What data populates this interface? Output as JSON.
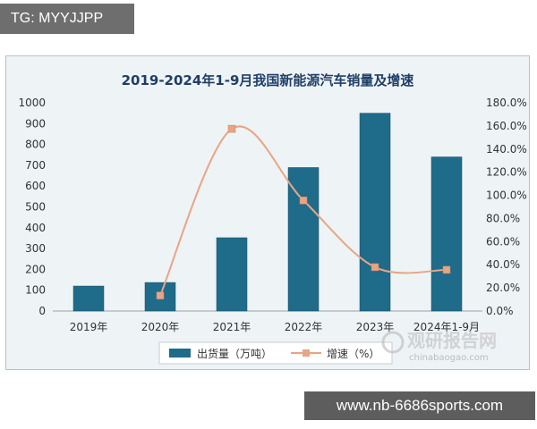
{
  "overlays": {
    "tag": "TG: MYYJJPP",
    "url": "www.nb-6686sports.com"
  },
  "watermark": {
    "main": "观研报告网",
    "sub": "chinabaogao.com"
  },
  "chart_data": {
    "type": "bar",
    "title": "2019-2024年1-9月我国新能源汽车销量及增速",
    "categories": [
      "2019年",
      "2020年",
      "2021年",
      "2022年",
      "2023年",
      "2024年1-9月"
    ],
    "series": [
      {
        "name": "出货量（万吨）",
        "type": "bar",
        "axis": "left",
        "color": "#1f6b8a",
        "values": [
          120,
          137,
          352,
          689,
          950,
          740
        ]
      },
      {
        "name": "增速（%）",
        "type": "line",
        "axis": "right",
        "color": "#e8a585",
        "values": [
          null,
          13.4,
          157.5,
          95.6,
          37.9,
          35.6
        ]
      }
    ],
    "y_left": {
      "ticks": [
        "0",
        "100",
        "200",
        "300",
        "400",
        "500",
        "600",
        "700",
        "800",
        "900",
        "1000"
      ],
      "ylim": [
        0,
        1000
      ]
    },
    "y_right": {
      "ticks": [
        "0.0%",
        "20.0%",
        "40.0%",
        "60.0%",
        "80.0%",
        "100.0%",
        "120.0%",
        "140.0%",
        "160.0%",
        "180.0%"
      ],
      "ylim": [
        0,
        180
      ]
    },
    "legend_position": "bottom",
    "grid": false
  }
}
